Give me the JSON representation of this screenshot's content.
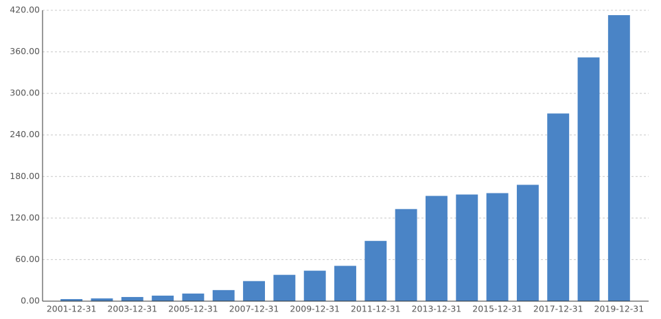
{
  "chart_data": {
    "type": "bar",
    "categories": [
      "2001-12-31",
      null,
      "2003-12-31",
      null,
      "2005-12-31",
      null,
      "2007-12-31",
      null,
      "2009-12-31",
      null,
      "2011-12-31",
      null,
      "2013-12-31",
      null,
      "2015-12-31",
      null,
      "2017-12-31",
      null,
      "2019-12-31"
    ],
    "values": [
      3,
      4,
      6,
      8,
      11,
      16,
      29,
      38,
      44,
      51,
      87,
      133,
      152,
      154,
      156,
      168,
      271,
      352,
      413
    ],
    "color": "#4a84c6",
    "ylim": [
      0,
      420
    ],
    "yticks": [
      {
        "value": 0,
        "label": "0.00"
      },
      {
        "value": 60,
        "label": "60.00"
      },
      {
        "value": 120,
        "label": "120.00"
      },
      {
        "value": 180,
        "label": "180.00"
      },
      {
        "value": 240,
        "label": "240.00"
      },
      {
        "value": 300,
        "label": "300.00"
      },
      {
        "value": 360,
        "label": "360.00"
      },
      {
        "value": 420,
        "label": "420.00"
      }
    ],
    "grid": true
  }
}
